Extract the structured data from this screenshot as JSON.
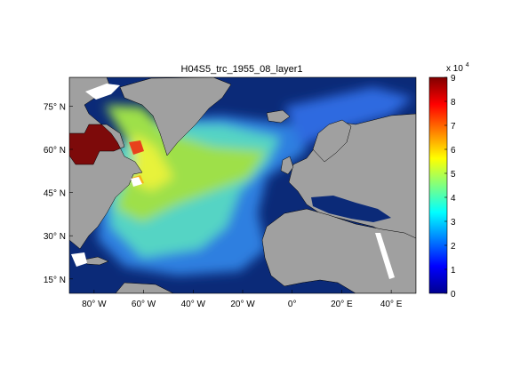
{
  "title": "H04S5_trc_1955_08_layer1",
  "map": {
    "lon_range": [
      -90,
      50
    ],
    "lat_range": [
      10,
      85
    ],
    "colors": {
      "land": "#a0a0a0",
      "no_data": "#ffffff",
      "ocean_low": "#0b2a78",
      "coast": "#000000"
    },
    "lon_ticks": [
      {
        "value": -80,
        "label": "80° W"
      },
      {
        "value": -60,
        "label": "60° W"
      },
      {
        "value": -40,
        "label": "40° W"
      },
      {
        "value": -20,
        "label": "20° W"
      },
      {
        "value": 0,
        "label": "0°"
      },
      {
        "value": 20,
        "label": "20° E"
      },
      {
        "value": 40,
        "label": "40° E"
      }
    ],
    "lat_ticks": [
      {
        "value": 75,
        "label": "75° N"
      },
      {
        "value": 60,
        "label": "60° N"
      },
      {
        "value": 45,
        "label": "45° N"
      },
      {
        "value": 30,
        "label": "30° N"
      },
      {
        "value": 15,
        "label": "15° N"
      }
    ]
  },
  "colorbar": {
    "min": 0,
    "max": 9,
    "multiplier_label": "x 10",
    "multiplier_exponent": "4",
    "ticks": [
      {
        "value": 0,
        "label": "0"
      },
      {
        "value": 1,
        "label": "1"
      },
      {
        "value": 2,
        "label": "2"
      },
      {
        "value": 3,
        "label": "3"
      },
      {
        "value": 4,
        "label": "4"
      },
      {
        "value": 5,
        "label": "5"
      },
      {
        "value": 6,
        "label": "6"
      },
      {
        "value": 7,
        "label": "7"
      },
      {
        "value": 8,
        "label": "8"
      },
      {
        "value": 9,
        "label": "9"
      }
    ],
    "colormap": "jet"
  }
}
